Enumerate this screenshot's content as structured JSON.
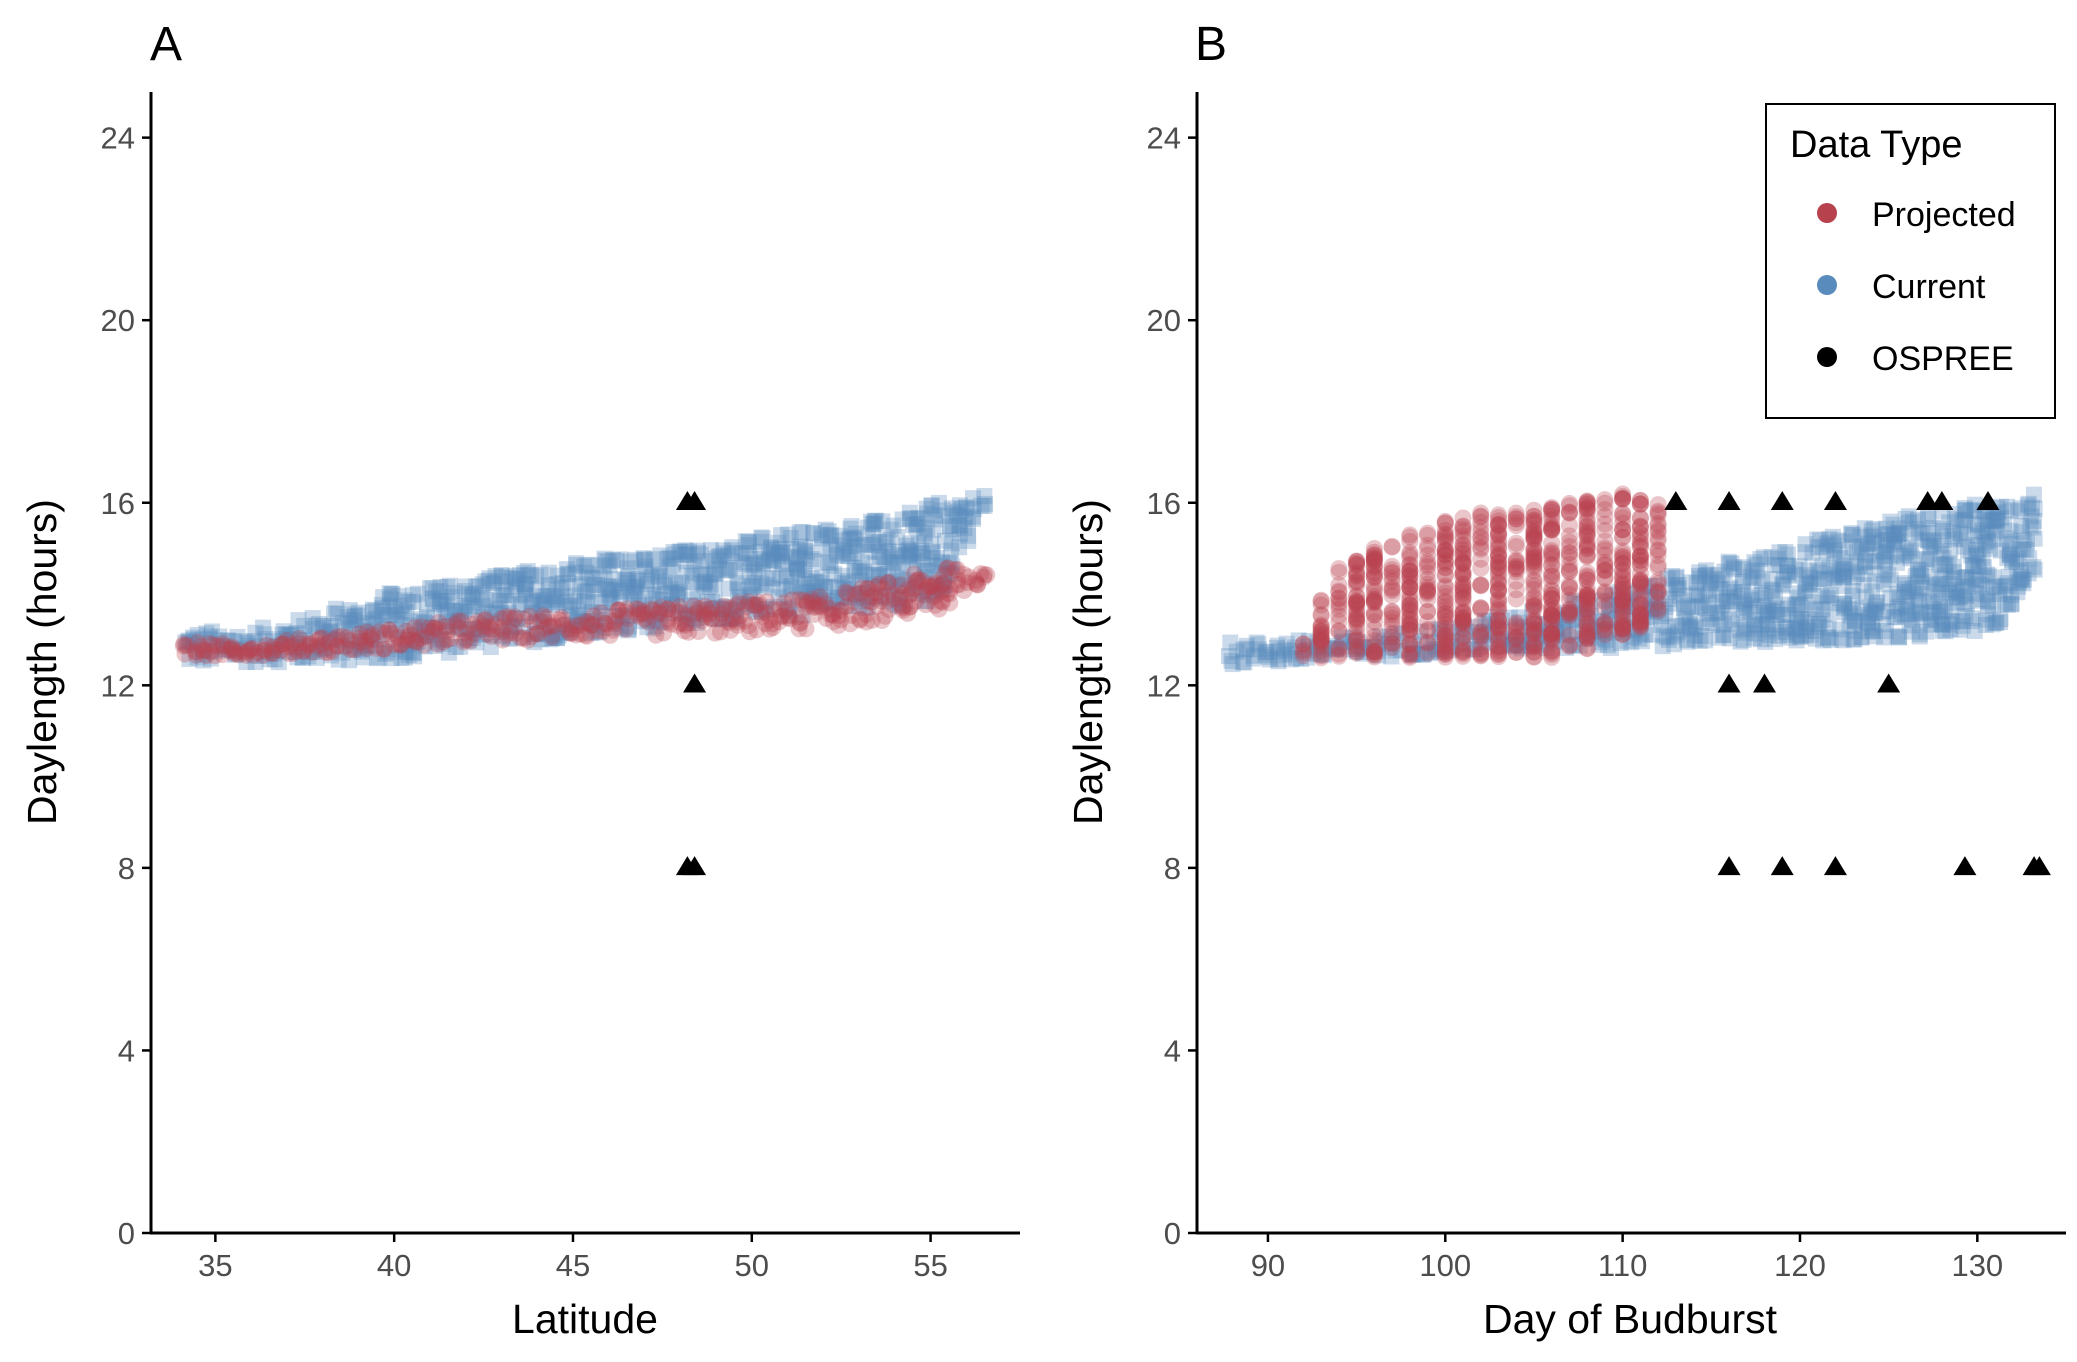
{
  "colors": {
    "projected": "#b8414e",
    "current": "#5a8bbd",
    "ospree": "#000000",
    "axis": "#000000",
    "tick_text": "#4d4d4d"
  },
  "legend": {
    "title": "Data Type",
    "entries": [
      {
        "label": "Projected",
        "color": "#b8414e"
      },
      {
        "label": "Current",
        "color": "#5a8bbd"
      },
      {
        "label": "OSPREE",
        "color": "#000000"
      }
    ]
  },
  "chart_data": [
    {
      "type": "scatter",
      "panel": "A",
      "xlabel": "Latitude",
      "ylabel": "Daylength (hours)",
      "xlim": [
        33.2,
        57.5
      ],
      "ylim": [
        0,
        25
      ],
      "xticks": [
        35,
        40,
        45,
        50,
        55
      ],
      "yticks": [
        0,
        4,
        8,
        12,
        16,
        20,
        24
      ],
      "grid": false,
      "series": [
        {
          "name": "Current",
          "marker": "square",
          "band": {
            "x": [
              34.2,
              36,
              38,
              40,
              42,
              44,
              46,
              48,
              50,
              52,
              54,
              55.2,
              56.5
            ],
            "y_low": [
              12.45,
              12.5,
              12.5,
              12.55,
              12.75,
              12.95,
              13.15,
              13.3,
              13.45,
              13.55,
              13.7,
              13.85,
              15.9
            ],
            "y_high": [
              13.2,
              13.2,
              13.6,
              14.05,
              14.3,
              14.6,
              14.8,
              15.0,
              15.2,
              15.45,
              15.75,
              16.0,
              16.2
            ]
          }
        },
        {
          "name": "Projected",
          "marker": "circle",
          "band": {
            "x": [
              34.2,
              36,
              38,
              40,
              42,
              44,
              46,
              48,
              50,
              52,
              54,
              55.3,
              56.5
            ],
            "y_low": [
              12.6,
              12.65,
              12.7,
              12.8,
              12.9,
              13.0,
              13.05,
              13.1,
              13.15,
              13.25,
              13.45,
              13.65,
              14.3
            ],
            "y_high": [
              12.95,
              12.9,
              13.1,
              13.25,
              13.45,
              13.55,
              13.65,
              13.75,
              13.85,
              13.95,
              14.3,
              14.6,
              14.55
            ]
          }
        },
        {
          "name": "OSPREE",
          "marker": "triangle",
          "points": [
            {
              "x": 48.2,
              "y": 16
            },
            {
              "x": 48.4,
              "y": 16
            },
            {
              "x": 48.4,
              "y": 12
            },
            {
              "x": 48.2,
              "y": 8
            },
            {
              "x": 48.4,
              "y": 8
            }
          ]
        }
      ]
    },
    {
      "type": "scatter",
      "panel": "B",
      "xlabel": "Day of Budburst",
      "ylabel": "Daylength (hours)",
      "xlim": [
        86,
        135
      ],
      "ylim": [
        0,
        25
      ],
      "xticks": [
        90,
        100,
        110,
        120,
        130
      ],
      "yticks": [
        0,
        4,
        8,
        12,
        16,
        20,
        24
      ],
      "grid": false,
      "series": [
        {
          "name": "Current",
          "marker": "square",
          "band": {
            "x": [
              88,
              92,
              96,
              100,
              104,
              108,
              112,
              116,
              120,
              124,
              128,
              131,
              133
            ],
            "y_low": [
              12.45,
              12.5,
              12.6,
              12.7,
              12.75,
              12.8,
              12.85,
              12.9,
              12.95,
              13.0,
              13.1,
              13.2,
              14.4
            ],
            "y_high": [
              12.95,
              13.0,
              13.1,
              13.3,
              13.6,
              13.9,
              14.3,
              14.7,
              15.1,
              15.5,
              15.9,
              16.0,
              16.2
            ]
          }
        },
        {
          "name": "Projected",
          "marker": "circle",
          "band": {
            "x": [
              92,
              94,
              96,
              98,
              100,
              102,
              104,
              106,
              108,
              110,
              112
            ],
            "y_low": [
              12.6,
              12.6,
              12.6,
              12.6,
              12.6,
              12.6,
              12.6,
              12.6,
              12.8,
              13.1,
              13.4
            ],
            "y_high": [
              13.2,
              14.6,
              15.0,
              15.3,
              15.6,
              15.8,
              15.9,
              15.9,
              16.1,
              16.2,
              16.0
            ]
          }
        },
        {
          "name": "OSPREE",
          "marker": "triangle",
          "points": [
            {
              "x": 113,
              "y": 16
            },
            {
              "x": 116,
              "y": 16
            },
            {
              "x": 119,
              "y": 16
            },
            {
              "x": 122,
              "y": 16
            },
            {
              "x": 127.2,
              "y": 16
            },
            {
              "x": 128,
              "y": 16
            },
            {
              "x": 130.6,
              "y": 16
            },
            {
              "x": 116,
              "y": 12
            },
            {
              "x": 118,
              "y": 12
            },
            {
              "x": 125,
              "y": 12
            },
            {
              "x": 116,
              "y": 8
            },
            {
              "x": 119,
              "y": 8
            },
            {
              "x": 122,
              "y": 8
            },
            {
              "x": 129.3,
              "y": 8
            },
            {
              "x": 133.2,
              "y": 8
            },
            {
              "x": 133.5,
              "y": 8
            }
          ]
        }
      ]
    }
  ]
}
